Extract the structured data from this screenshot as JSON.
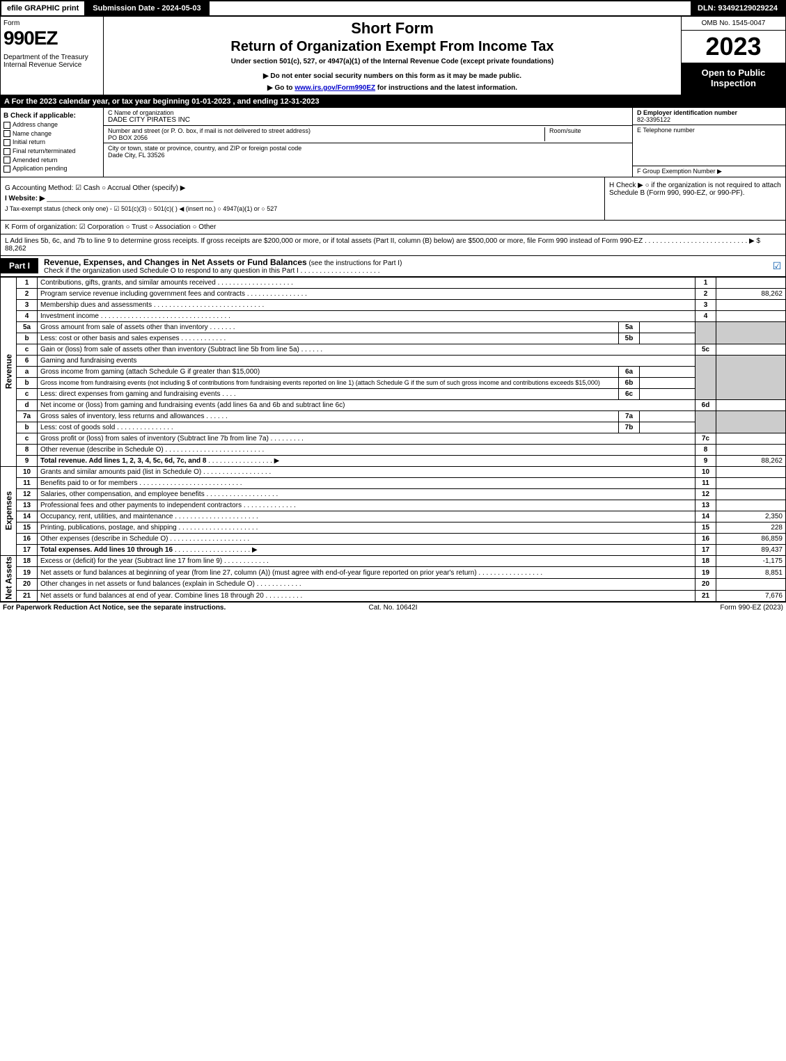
{
  "topbar": {
    "efile": "efile GRAPHIC print",
    "subdate": "Submission Date - 2024-05-03",
    "dln": "DLN: 93492129029224"
  },
  "header": {
    "form_label": "Form",
    "form_no": "990EZ",
    "dept": "Department of the Treasury\nInternal Revenue Service",
    "short": "Short Form",
    "title": "Return of Organization Exempt From Income Tax",
    "sub": "Under section 501(c), 527, or 4947(a)(1) of the Internal Revenue Code (except private foundations)",
    "note": "▶ Do not enter social security numbers on this form as it may be made public.",
    "link_pre": "▶ Go to ",
    "link_url": "www.irs.gov/Form990EZ",
    "link_post": " for instructions and the latest information.",
    "omb": "OMB No. 1545-0047",
    "year": "2023",
    "open": "Open to Public Inspection"
  },
  "row_a": "A  For the 2023 calendar year, or tax year beginning 01-01-2023 , and ending 12-31-2023",
  "section_b": {
    "label": "B  Check if applicable:",
    "items": [
      "Address change",
      "Name change",
      "Initial return",
      "Final return/terminated",
      "Amended return",
      "Application pending"
    ]
  },
  "section_c": {
    "label": "C Name of organization",
    "value": "DADE CITY PIRATES INC",
    "addr_label": "Number and street (or P. O. box, if mail is not delivered to street address)",
    "addr_value": "PO BOX 2056",
    "room_label": "Room/suite",
    "city_label": "City or town, state or province, country, and ZIP or foreign postal code",
    "city_value": "Dade City, FL  33526"
  },
  "section_d": {
    "label": "D Employer identification number",
    "value": "82-3395122"
  },
  "section_e": {
    "label": "E Telephone number"
  },
  "section_f": {
    "label": "F Group Exemption Number  ▶"
  },
  "row_g": "G Accounting Method:   ☑ Cash  ○ Accrual   Other (specify) ▶",
  "row_h": "H   Check ▶  ○  if the organization is not required to attach Schedule B (Form 990, 990-EZ, or 990-PF).",
  "row_i": "I Website: ▶",
  "row_j": "J Tax-exempt status (check only one) - ☑ 501(c)(3) ○ 501(c)(  ) ◀ (insert no.) ○ 4947(a)(1) or ○ 527",
  "row_k": "K Form of organization:  ☑ Corporation  ○ Trust  ○ Association  ○ Other",
  "row_l": "L Add lines 5b, 6c, and 7b to line 9 to determine gross receipts. If gross receipts are $200,000 or more, or if total assets (Part II, column (B) below) are $500,000 or more, file Form 990 instead of Form 990-EZ  .  .  .  .  .  .  .  .  .  .  .  .  .  .  .  .  .  .  .  .  .  .  .  .  .  .  .  ▶ $ 88,262",
  "part1": {
    "tab": "Part I",
    "title": "Revenue, Expenses, and Changes in Net Assets or Fund Balances",
    "title_note": " (see the instructions for Part I)",
    "sub": "Check if the organization used Schedule O to respond to any question in this Part I"
  },
  "labels": {
    "revenue": "Revenue",
    "expenses": "Expenses",
    "netassets": "Net Assets"
  },
  "lines": {
    "l1": {
      "n": "1",
      "d": "Contributions, gifts, grants, and similar amounts received",
      "r": "1",
      "a": ""
    },
    "l2": {
      "n": "2",
      "d": "Program service revenue including government fees and contracts",
      "r": "2",
      "a": "88,262"
    },
    "l3": {
      "n": "3",
      "d": "Membership dues and assessments",
      "r": "3",
      "a": ""
    },
    "l4": {
      "n": "4",
      "d": "Investment income",
      "r": "4",
      "a": ""
    },
    "l5a": {
      "n": "5a",
      "d": "Gross amount from sale of assets other than inventory",
      "sr": "5a"
    },
    "l5b": {
      "n": "b",
      "d": "Less: cost or other basis and sales expenses",
      "sr": "5b"
    },
    "l5c": {
      "n": "c",
      "d": "Gain or (loss) from sale of assets other than inventory (Subtract line 5b from line 5a)",
      "r": "5c",
      "a": ""
    },
    "l6": {
      "n": "6",
      "d": "Gaming and fundraising events"
    },
    "l6a": {
      "n": "a",
      "d": "Gross income from gaming (attach Schedule G if greater than $15,000)",
      "sr": "6a"
    },
    "l6b": {
      "n": "b",
      "d": "Gross income from fundraising events (not including $               of contributions from fundraising events reported on line 1) (attach Schedule G if the sum of such gross income and contributions exceeds $15,000)",
      "sr": "6b"
    },
    "l6c": {
      "n": "c",
      "d": "Less: direct expenses from gaming and fundraising events",
      "sr": "6c"
    },
    "l6d": {
      "n": "d",
      "d": "Net income or (loss) from gaming and fundraising events (add lines 6a and 6b and subtract line 6c)",
      "r": "6d",
      "a": ""
    },
    "l7a": {
      "n": "7a",
      "d": "Gross sales of inventory, less returns and allowances",
      "sr": "7a"
    },
    "l7b": {
      "n": "b",
      "d": "Less: cost of goods sold",
      "sr": "7b"
    },
    "l7c": {
      "n": "c",
      "d": "Gross profit or (loss) from sales of inventory (Subtract line 7b from line 7a)",
      "r": "7c",
      "a": ""
    },
    "l8": {
      "n": "8",
      "d": "Other revenue (describe in Schedule O)",
      "r": "8",
      "a": ""
    },
    "l9": {
      "n": "9",
      "d": "Total revenue. Add lines 1, 2, 3, 4, 5c, 6d, 7c, and 8",
      "r": "9",
      "a": "88,262",
      "arrow": true,
      "bold": true
    },
    "l10": {
      "n": "10",
      "d": "Grants and similar amounts paid (list in Schedule O)",
      "r": "10",
      "a": ""
    },
    "l11": {
      "n": "11",
      "d": "Benefits paid to or for members",
      "r": "11",
      "a": ""
    },
    "l12": {
      "n": "12",
      "d": "Salaries, other compensation, and employee benefits",
      "r": "12",
      "a": ""
    },
    "l13": {
      "n": "13",
      "d": "Professional fees and other payments to independent contractors",
      "r": "13",
      "a": ""
    },
    "l14": {
      "n": "14",
      "d": "Occupancy, rent, utilities, and maintenance",
      "r": "14",
      "a": "2,350"
    },
    "l15": {
      "n": "15",
      "d": "Printing, publications, postage, and shipping",
      "r": "15",
      "a": "228"
    },
    "l16": {
      "n": "16",
      "d": "Other expenses (describe in Schedule O)",
      "r": "16",
      "a": "86,859"
    },
    "l17": {
      "n": "17",
      "d": "Total expenses. Add lines 10 through 16",
      "r": "17",
      "a": "89,437",
      "arrow": true,
      "bold": true
    },
    "l18": {
      "n": "18",
      "d": "Excess or (deficit) for the year (Subtract line 17 from line 9)",
      "r": "18",
      "a": "-1,175"
    },
    "l19": {
      "n": "19",
      "d": "Net assets or fund balances at beginning of year (from line 27, column (A)) (must agree with end-of-year figure reported on prior year's return)",
      "r": "19",
      "a": "8,851"
    },
    "l20": {
      "n": "20",
      "d": "Other changes in net assets or fund balances (explain in Schedule O)",
      "r": "20",
      "a": ""
    },
    "l21": {
      "n": "21",
      "d": "Net assets or fund balances at end of year. Combine lines 18 through 20",
      "r": "21",
      "a": "7,676"
    }
  },
  "footer": {
    "left": "For Paperwork Reduction Act Notice, see the separate instructions.",
    "center": "Cat. No. 10642I",
    "right": "Form 990-EZ (2023)"
  }
}
